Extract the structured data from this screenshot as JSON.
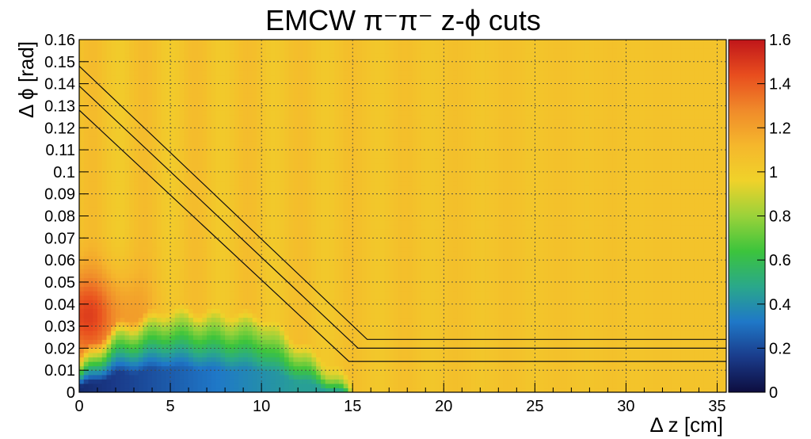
{
  "chart_data": {
    "type": "heatmap",
    "title": "EMCW π⁻π⁻  z-ϕ cuts",
    "xlabel": "Δ z [cm]",
    "ylabel": "Δ ϕ [rad]",
    "xlim": [
      0,
      35.5
    ],
    "ylim": [
      0,
      0.16
    ],
    "x_ticks": [
      0,
      5,
      10,
      15,
      20,
      25,
      30,
      35
    ],
    "x_tick_labels": [
      "0",
      "5",
      "10",
      "15",
      "20",
      "25",
      "30",
      "35"
    ],
    "y_ticks": [
      0,
      0.01,
      0.02,
      0.03,
      0.04,
      0.05,
      0.06,
      0.07,
      0.08,
      0.09,
      0.1,
      0.11,
      0.12,
      0.13,
      0.14,
      0.15,
      0.16
    ],
    "y_tick_labels": [
      "0",
      "0.01",
      "0.02",
      "0.03",
      "0.04",
      "0.05",
      "0.06",
      "0.07",
      "0.08",
      "0.09",
      "0.1",
      "0.11",
      "0.12",
      "0.13",
      "0.14",
      "0.15",
      "0.16"
    ],
    "grid": true,
    "colorbar": {
      "range": [
        0,
        1.6
      ],
      "ticks": [
        0,
        0.2,
        0.4,
        0.6,
        0.8,
        1,
        1.2,
        1.4,
        1.6
      ],
      "tick_labels": [
        "0",
        "0.2",
        "0.4",
        "0.6",
        "0.8",
        "1",
        "1.2",
        "1.4",
        "1.6"
      ],
      "palette": [
        "#0d0d3f",
        "#1a3b8a",
        "#1f78c8",
        "#2aa88a",
        "#3cc43c",
        "#9ad23a",
        "#f0d22a",
        "#f5b72c",
        "#f08a2a",
        "#e84d1e",
        "#c0161a"
      ]
    },
    "background_value": 1.05,
    "features": [
      {
        "region": "low-ratio core",
        "z_range": [
          0,
          15
        ],
        "phi_max_at_z": [
          [
            0,
            0.01
          ],
          [
            2,
            0.025
          ],
          [
            5,
            0.033
          ],
          [
            10,
            0.03
          ],
          [
            15,
            0.0
          ]
        ],
        "value": 0.1
      },
      {
        "region": "enhanced band",
        "z_range": [
          0,
          3
        ],
        "phi_range": [
          0.02,
          0.07
        ],
        "value": 1.45
      }
    ],
    "cut_lines": [
      {
        "points": [
          [
            0,
            0.148
          ],
          [
            15.8,
            0.024
          ],
          [
            35.5,
            0.024
          ]
        ]
      },
      {
        "points": [
          [
            0,
            0.139
          ],
          [
            15.3,
            0.02
          ],
          [
            35.5,
            0.02
          ]
        ]
      },
      {
        "points": [
          [
            0,
            0.128
          ],
          [
            14.8,
            0.014
          ],
          [
            35.5,
            0.014
          ]
        ]
      }
    ]
  }
}
